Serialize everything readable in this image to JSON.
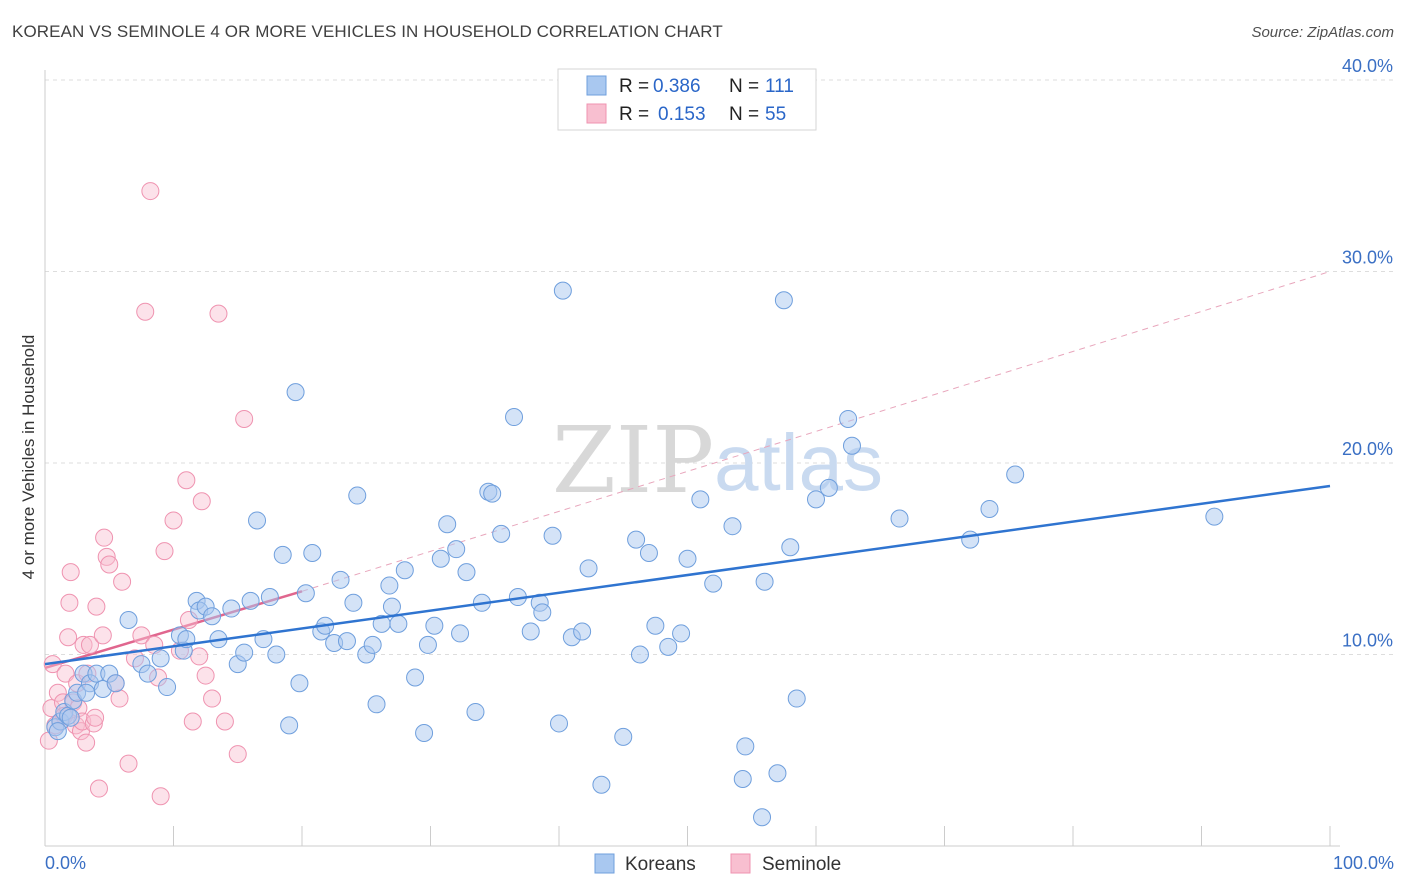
{
  "header": {
    "title": "KOREAN VS SEMINOLE 4 OR MORE VEHICLES IN HOUSEHOLD CORRELATION CHART",
    "source": "Source: ZipAtlas.com"
  },
  "watermark": {
    "zip": "ZIP",
    "atlas": "atlas"
  },
  "legend": {
    "rows": [
      {
        "r_label": "R =",
        "r_value": "0.386",
        "n_label": "N =",
        "n_value": "111",
        "color": "#a9c8f0"
      },
      {
        "r_label": "R =",
        "r_value": "0.153",
        "n_label": "N =",
        "n_value": "55",
        "color": "#f8bfd0"
      }
    ]
  },
  "bottom_legend": [
    {
      "label": "Koreans",
      "color": "#a9c8f0"
    },
    {
      "label": "Seminole",
      "color": "#f8bfd0"
    }
  ],
  "colors": {
    "koreans_fill": "#a9c8f0",
    "koreans_stroke": "#6f9fdd",
    "koreans_line": "#2f74d0",
    "seminole_fill": "#f8bfd0",
    "seminole_stroke": "#ef93b0",
    "seminole_line": "#e0668e",
    "grid": "#dddddd",
    "axis_text": "#3a6fc4"
  },
  "chart_data": {
    "type": "scatter",
    "title": "KOREAN VS SEMINOLE 4 OR MORE VEHICLES IN HOUSEHOLD CORRELATION CHART",
    "xlabel": "",
    "ylabel": "4 or more Vehicles in Household",
    "xlim": [
      0,
      100
    ],
    "ylim": [
      0,
      40
    ],
    "x_tick_labels": [
      "0.0%",
      "100.0%"
    ],
    "y_ticks": [
      10,
      20,
      30,
      40
    ],
    "y_tick_labels": [
      "10.0%",
      "20.0%",
      "30.0%",
      "40.0%"
    ],
    "grid": true,
    "legend_position": "top-center",
    "series": [
      {
        "name": "Koreans",
        "R": 0.386,
        "N": 111,
        "trend": {
          "x": [
            0,
            100
          ],
          "y": [
            9.5,
            18.8
          ],
          "style": "solid"
        },
        "points": [
          [
            0.8,
            6.2
          ],
          [
            1.2,
            6.5
          ],
          [
            1.5,
            7.0
          ],
          [
            1.8,
            6.8
          ],
          [
            2.2,
            7.6
          ],
          [
            2.5,
            8.0
          ],
          [
            3.0,
            9.0
          ],
          [
            3.5,
            8.5
          ],
          [
            4.0,
            9.0
          ],
          [
            4.5,
            8.2
          ],
          [
            5.0,
            9.0
          ],
          [
            5.5,
            8.5
          ],
          [
            6.5,
            11.8
          ],
          [
            7.5,
            9.5
          ],
          [
            8.0,
            9.0
          ],
          [
            9.0,
            9.8
          ],
          [
            9.5,
            8.3
          ],
          [
            10.5,
            11.0
          ],
          [
            10.8,
            10.2
          ],
          [
            11.0,
            10.8
          ],
          [
            11.8,
            12.8
          ],
          [
            12.0,
            12.3
          ],
          [
            12.5,
            12.5
          ],
          [
            13.0,
            12.0
          ],
          [
            13.5,
            10.8
          ],
          [
            14.5,
            12.4
          ],
          [
            15.0,
            9.5
          ],
          [
            15.5,
            10.1
          ],
          [
            16.0,
            12.8
          ],
          [
            16.5,
            17.0
          ],
          [
            17.0,
            10.8
          ],
          [
            17.5,
            13.0
          ],
          [
            18.0,
            10.0
          ],
          [
            18.5,
            15.2
          ],
          [
            19.0,
            6.3
          ],
          [
            19.5,
            23.7
          ],
          [
            19.8,
            8.5
          ],
          [
            20.3,
            13.2
          ],
          [
            20.8,
            15.3
          ],
          [
            21.5,
            11.2
          ],
          [
            21.8,
            11.5
          ],
          [
            22.5,
            10.6
          ],
          [
            23.0,
            13.9
          ],
          [
            23.5,
            10.7
          ],
          [
            24.0,
            12.7
          ],
          [
            24.3,
            18.3
          ],
          [
            25.0,
            10.0
          ],
          [
            25.5,
            10.5
          ],
          [
            25.8,
            7.4
          ],
          [
            26.2,
            11.6
          ],
          [
            26.8,
            13.6
          ],
          [
            27.0,
            12.5
          ],
          [
            27.5,
            11.6
          ],
          [
            28.0,
            14.4
          ],
          [
            28.8,
            8.8
          ],
          [
            29.5,
            5.9
          ],
          [
            29.8,
            10.5
          ],
          [
            30.3,
            11.5
          ],
          [
            30.8,
            15.0
          ],
          [
            31.3,
            16.8
          ],
          [
            32.0,
            15.5
          ],
          [
            32.3,
            11.1
          ],
          [
            32.8,
            14.3
          ],
          [
            33.5,
            7.0
          ],
          [
            34.0,
            12.7
          ],
          [
            34.5,
            18.5
          ],
          [
            34.8,
            18.4
          ],
          [
            35.5,
            16.3
          ],
          [
            36.5,
            22.4
          ],
          [
            36.8,
            13.0
          ],
          [
            37.8,
            11.2
          ],
          [
            38.5,
            12.7
          ],
          [
            38.7,
            12.2
          ],
          [
            39.5,
            16.2
          ],
          [
            40.0,
            6.4
          ],
          [
            40.3,
            29.0
          ],
          [
            41.0,
            10.9
          ],
          [
            41.8,
            11.2
          ],
          [
            42.3,
            14.5
          ],
          [
            43.3,
            3.2
          ],
          [
            45.0,
            5.7
          ],
          [
            46.0,
            16.0
          ],
          [
            46.3,
            10.0
          ],
          [
            47.0,
            15.3
          ],
          [
            47.5,
            11.5
          ],
          [
            48.5,
            10.4
          ],
          [
            49.5,
            11.1
          ],
          [
            50.0,
            15.0
          ],
          [
            51.0,
            18.1
          ],
          [
            52.0,
            13.7
          ],
          [
            53.5,
            16.7
          ],
          [
            54.3,
            3.5
          ],
          [
            54.5,
            5.2
          ],
          [
            55.8,
            1.5
          ],
          [
            56.0,
            13.8
          ],
          [
            57.0,
            3.8
          ],
          [
            57.5,
            28.5
          ],
          [
            58.0,
            15.6
          ],
          [
            58.5,
            7.7
          ],
          [
            60.0,
            18.1
          ],
          [
            61.0,
            18.7
          ],
          [
            62.5,
            22.3
          ],
          [
            62.8,
            20.9
          ],
          [
            66.5,
            17.1
          ],
          [
            72.0,
            16.0
          ],
          [
            73.5,
            17.6
          ],
          [
            75.5,
            19.4
          ],
          [
            91.0,
            17.2
          ],
          [
            1.0,
            6.0
          ],
          [
            2.0,
            6.7
          ],
          [
            3.2,
            8.0
          ]
        ]
      },
      {
        "name": "Seminole",
        "R": 0.153,
        "N": 55,
        "trend": {
          "x": [
            0,
            20
          ],
          "y": [
            9.3,
            13.3
          ],
          "style": "solid",
          "dashed_extension": {
            "x": [
              20,
              100
            ],
            "y": [
              13.3,
              30.0
            ]
          }
        },
        "points": [
          [
            0.3,
            5.5
          ],
          [
            0.5,
            7.2
          ],
          [
            0.6,
            9.5
          ],
          [
            0.8,
            6.3
          ],
          [
            1.0,
            8.0
          ],
          [
            1.2,
            6.5
          ],
          [
            1.4,
            7.5
          ],
          [
            1.5,
            6.8
          ],
          [
            1.6,
            9.0
          ],
          [
            1.8,
            10.9
          ],
          [
            1.9,
            12.7
          ],
          [
            2.0,
            14.3
          ],
          [
            2.2,
            7.5
          ],
          [
            2.4,
            6.3
          ],
          [
            2.5,
            8.5
          ],
          [
            2.6,
            7.2
          ],
          [
            2.8,
            6.0
          ],
          [
            2.9,
            6.5
          ],
          [
            3.0,
            10.5
          ],
          [
            3.2,
            5.4
          ],
          [
            3.3,
            9.0
          ],
          [
            3.5,
            10.5
          ],
          [
            3.8,
            6.4
          ],
          [
            3.9,
            6.7
          ],
          [
            4.0,
            12.5
          ],
          [
            4.2,
            3.0
          ],
          [
            4.5,
            11.0
          ],
          [
            4.6,
            16.1
          ],
          [
            4.8,
            15.1
          ],
          [
            5.0,
            14.7
          ],
          [
            5.5,
            8.5
          ],
          [
            5.8,
            7.7
          ],
          [
            6.0,
            13.8
          ],
          [
            6.5,
            4.3
          ],
          [
            7.0,
            9.8
          ],
          [
            7.5,
            11.0
          ],
          [
            7.8,
            27.9
          ],
          [
            8.2,
            34.2
          ],
          [
            8.5,
            10.5
          ],
          [
            8.8,
            8.8
          ],
          [
            9.0,
            2.6
          ],
          [
            9.3,
            15.4
          ],
          [
            10.0,
            17.0
          ],
          [
            10.5,
            10.2
          ],
          [
            11.0,
            19.1
          ],
          [
            11.2,
            11.8
          ],
          [
            11.5,
            6.5
          ],
          [
            12.0,
            9.9
          ],
          [
            12.2,
            18.0
          ],
          [
            12.5,
            8.9
          ],
          [
            13.0,
            7.7
          ],
          [
            13.5,
            27.8
          ],
          [
            14.0,
            6.5
          ],
          [
            15.0,
            4.8
          ],
          [
            15.5,
            22.3
          ]
        ]
      }
    ]
  }
}
